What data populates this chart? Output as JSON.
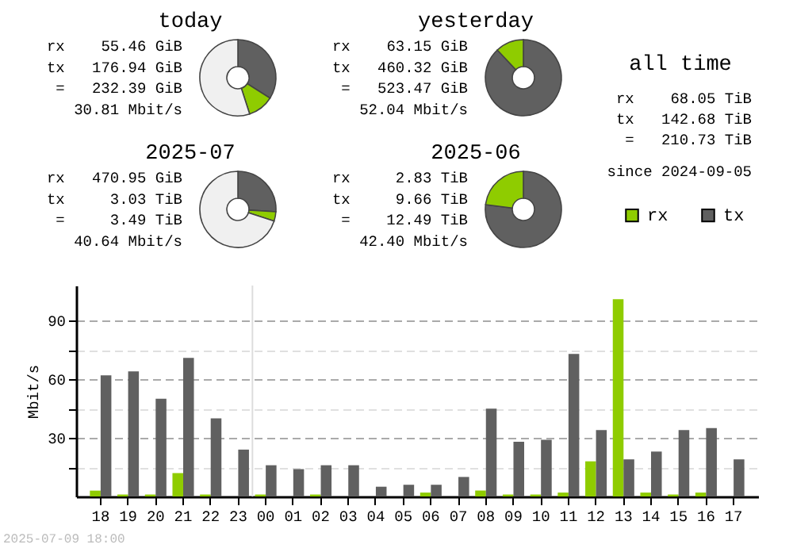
{
  "chart_data": [
    {
      "type": "donut",
      "title": "today",
      "categories": [
        null,
        null,
        null
      ],
      "values": [
        34,
        11,
        55
      ],
      "colors": [
        "#606060",
        "#8fcc00",
        "#f0f0f0"
      ],
      "annotations": [
        "rx    55.46 GiB",
        "tx   176.94 GiB",
        " =   232.39 GiB",
        "30.81 Mbit/s"
      ]
    },
    {
      "type": "donut",
      "title": "yesterday",
      "categories": [
        null,
        null
      ],
      "values": [
        88,
        12
      ],
      "colors": [
        "#606060",
        "#8fcc00"
      ],
      "annotations": [
        "rx    63.15 GiB",
        "tx   460.32 GiB",
        " =   523.47 GiB",
        "52.04 Mbit/s"
      ]
    },
    {
      "type": "other",
      "title": "all time",
      "annotations": [
        "rx    68.05 TiB",
        "tx   142.68 TiB",
        " =   210.73 TiB",
        "since 2024-09-05"
      ]
    },
    {
      "type": "donut",
      "title": "2025-07",
      "categories": [
        null,
        null,
        null
      ],
      "values": [
        26,
        4,
        70
      ],
      "colors": [
        "#606060",
        "#8fcc00",
        "#f0f0f0"
      ],
      "annotations": [
        "rx   470.95 GiB",
        "tx     3.03 TiB",
        " =     3.49 TiB",
        "40.64 Mbit/s"
      ]
    },
    {
      "type": "donut",
      "title": "2025-06",
      "categories": [
        null,
        null
      ],
      "values": [
        77,
        23
      ],
      "colors": [
        "#606060",
        "#8fcc00"
      ],
      "annotations": [
        "rx     2.83 TiB",
        "tx     9.66 TiB",
        " =    12.49 TiB",
        "42.40 Mbit/s"
      ]
    },
    {
      "type": "bar",
      "ylabel": "Mbit/s",
      "categories": [
        "18",
        "19",
        "20",
        "21",
        "22",
        "23",
        "00",
        "01",
        "02",
        "03",
        "04",
        "05",
        "06",
        "07",
        "08",
        "09",
        "10",
        "11",
        "12",
        "13",
        "14",
        "15",
        "16",
        "17"
      ],
      "series": [
        {
          "name": "rx",
          "color": "#8fcc00",
          "values": [
            3,
            1,
            1,
            12,
            1,
            0,
            1,
            0,
            1,
            0,
            0,
            0,
            2,
            0,
            3,
            1,
            1,
            2,
            18,
            101,
            2,
            1,
            2,
            0
          ]
        },
        {
          "name": "tx",
          "color": "#606060",
          "values": [
            62,
            64,
            50,
            71,
            40,
            24,
            16,
            14,
            16,
            16,
            5,
            6,
            6,
            10,
            45,
            28,
            29,
            73,
            34,
            19,
            23,
            34,
            35,
            19
          ]
        }
      ],
      "ylim": [
        0,
        108
      ],
      "yticks": [
        {
          "value": 15,
          "label": null
        },
        30,
        {
          "value": 45,
          "label": null
        },
        60,
        {
          "value": 75,
          "label": null
        },
        90
      ],
      "grid": "y",
      "legend": "top right",
      "ref_lines": [
        {
          "axis": "x",
          "value": "00",
          "color": "#dddddd"
        }
      ],
      "annotations": [
        "2025-07-09 18:00"
      ]
    }
  ]
}
